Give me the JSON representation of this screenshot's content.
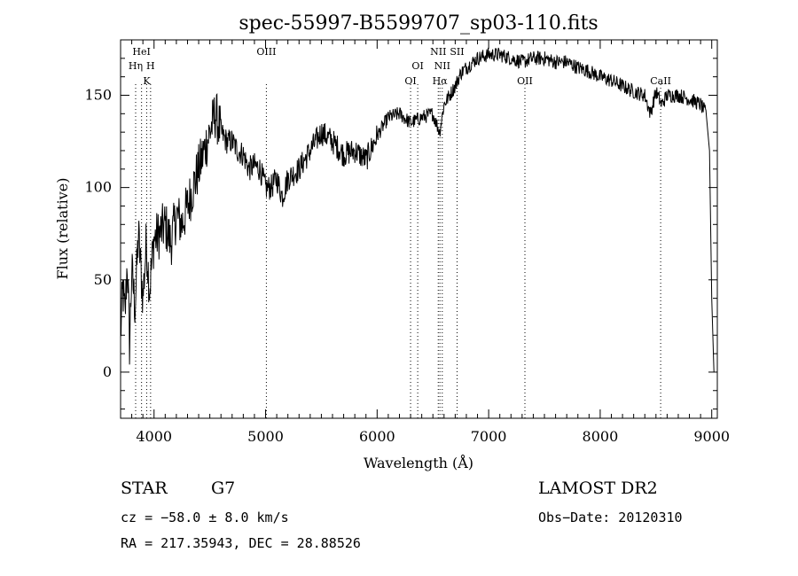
{
  "chart_data": {
    "type": "line",
    "title": "spec-55997-B5599707_sp03-110.fits",
    "xlabel": "Wavelength (Å)",
    "ylabel": "Flux (relative)",
    "xlim": [
      3700,
      9050
    ],
    "ylim": [
      -25,
      180
    ],
    "xticks": [
      4000,
      5000,
      6000,
      7000,
      8000,
      9000
    ],
    "yticks": [
      0,
      50,
      100,
      150
    ],
    "grid": false,
    "legend": "none",
    "line_color": "#000000",
    "spectrum_anchor_points": {
      "x": [
        3700,
        3720,
        3740,
        3760,
        3780,
        3800,
        3830,
        3860,
        3900,
        3930,
        3960,
        4000,
        4050,
        4100,
        4150,
        4200,
        4250,
        4300,
        4400,
        4500,
        4550,
        4600,
        4650,
        4700,
        4750,
        4800,
        4850,
        4900,
        4950,
        5000,
        5050,
        5100,
        5150,
        5200,
        5300,
        5400,
        5500,
        5600,
        5700,
        5800,
        5900,
        6000,
        6100,
        6200,
        6300,
        6400,
        6500,
        6560,
        6600,
        6650,
        6700,
        6750,
        6800,
        6900,
        7000,
        7100,
        7200,
        7300,
        7400,
        7500,
        7600,
        7700,
        7800,
        7900,
        8000,
        8100,
        8200,
        8300,
        8400,
        8450,
        8500,
        8550,
        8600,
        8700,
        8800,
        8900,
        8950,
        8980,
        9000,
        9020
      ],
      "y": [
        20,
        45,
        30,
        60,
        15,
        55,
        35,
        75,
        40,
        70,
        45,
        72,
        75,
        80,
        70,
        85,
        80,
        90,
        110,
        130,
        140,
        130,
        125,
        125,
        120,
        118,
        110,
        112,
        110,
        100,
        100,
        105,
        95,
        105,
        110,
        120,
        130,
        125,
        118,
        120,
        115,
        128,
        138,
        140,
        135,
        138,
        140,
        130,
        145,
        150,
        155,
        162,
        165,
        170,
        172,
        172,
        170,
        168,
        170,
        170,
        168,
        168,
        165,
        163,
        160,
        158,
        155,
        152,
        150,
        140,
        152,
        145,
        150,
        150,
        148,
        145,
        140,
        120,
        40,
        0
      ]
    },
    "line_markers": [
      {
        "label": "HeI",
        "x": 3888
      },
      {
        "label": "Hη",
        "x": 3835
      },
      {
        "label": "H",
        "x": 3969
      },
      {
        "label": "K",
        "x": 3934
      },
      {
        "label": "OIII",
        "x": 5007
      },
      {
        "label": "OI",
        "x": 6364
      },
      {
        "label": "OI",
        "x": 6300
      },
      {
        "label": "NII",
        "x": 6548
      },
      {
        "label": "NII",
        "x": 6584
      },
      {
        "label": "Hα",
        "x": 6563
      },
      {
        "label": "SII",
        "x": 6717
      },
      {
        "label": "OII",
        "x": 7325
      },
      {
        "label": "CaII",
        "x": 8542
      }
    ]
  },
  "info": {
    "class": "STAR",
    "subclass": "G7",
    "survey": "LAMOST DR2",
    "cz": "cz = −58.0 ± 8.0 km/s",
    "obs_date": "Obs−Date: 20120310",
    "radec": "RA = 217.35943, DEC =  28.88526"
  }
}
